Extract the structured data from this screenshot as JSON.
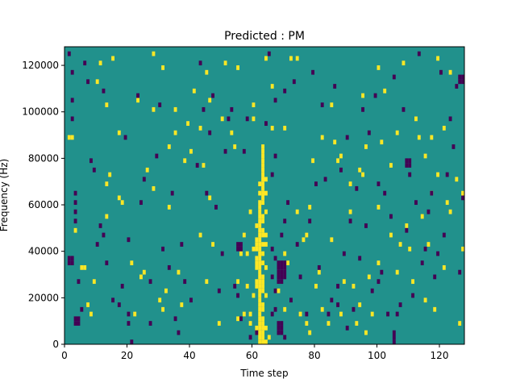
{
  "chart_data": {
    "type": "heatmap",
    "title": "Predicted : PM",
    "xlabel": "Time step",
    "ylabel": "Frequency (Hz)",
    "xlim": [
      0,
      128
    ],
    "ylim": [
      0,
      128000
    ],
    "x_ticks": [
      0,
      20,
      40,
      60,
      80,
      100,
      120
    ],
    "y_ticks": [
      0,
      20000,
      40000,
      60000,
      80000,
      100000,
      120000
    ],
    "grid": false,
    "colormap": "viridis",
    "values": {
      "low": -1,
      "mid": 0,
      "high": 1
    },
    "colors": {
      "low": "#440154",
      "mid": "#21918c",
      "high": "#fde725"
    },
    "background_value": 0,
    "bin_width": [
      1,
      2000
    ],
    "cells_high": [
      [
        62,
        1000
      ],
      [
        63,
        1000
      ],
      [
        63,
        3000
      ],
      [
        62,
        3000
      ],
      [
        61,
        5000
      ],
      [
        62,
        5000
      ],
      [
        63,
        5000
      ],
      [
        61,
        7000
      ],
      [
        62,
        7000
      ],
      [
        63,
        7000
      ],
      [
        62,
        9000
      ],
      [
        63,
        9000
      ],
      [
        63,
        11000
      ],
      [
        62,
        11000
      ],
      [
        62,
        13000
      ],
      [
        62,
        15000
      ],
      [
        63,
        15000
      ],
      [
        63,
        17000
      ],
      [
        62,
        17000
      ],
      [
        62,
        19000
      ],
      [
        62,
        21000
      ],
      [
        62,
        23000
      ],
      [
        63,
        23000
      ],
      [
        62,
        25000
      ],
      [
        63,
        25000
      ],
      [
        61,
        25000
      ],
      [
        62,
        27000
      ],
      [
        63,
        27000
      ],
      [
        61,
        27000
      ],
      [
        62,
        29000
      ],
      [
        63,
        29000
      ],
      [
        62,
        31000
      ],
      [
        62,
        33000
      ],
      [
        61,
        33000
      ],
      [
        62,
        35000
      ],
      [
        63,
        35000
      ],
      [
        62,
        37000
      ],
      [
        61,
        37000
      ],
      [
        62,
        39000
      ],
      [
        63,
        39000
      ],
      [
        61,
        41000
      ],
      [
        62,
        41000
      ],
      [
        60,
        41000
      ],
      [
        61,
        43000
      ],
      [
        62,
        43000
      ],
      [
        63,
        43000
      ],
      [
        62,
        45000
      ],
      [
        61,
        45000
      ],
      [
        62,
        47000
      ],
      [
        63,
        47000
      ],
      [
        62,
        49000
      ],
      [
        63,
        49000
      ],
      [
        62,
        51000
      ],
      [
        61,
        51000
      ],
      [
        62,
        53000
      ],
      [
        63,
        53000
      ],
      [
        62,
        55000
      ],
      [
        63,
        55000
      ],
      [
        62,
        57000
      ],
      [
        62,
        59000
      ],
      [
        62,
        61000
      ],
      [
        63,
        61000
      ],
      [
        63,
        63000
      ],
      [
        63,
        65000
      ],
      [
        62,
        65000
      ],
      [
        63,
        67000
      ],
      [
        63,
        69000
      ],
      [
        62,
        69000
      ],
      [
        63,
        71000
      ],
      [
        63,
        73000
      ],
      [
        63,
        75000
      ],
      [
        63,
        77000
      ],
      [
        63,
        79000
      ],
      [
        63,
        81000
      ],
      [
        63,
        83000
      ],
      [
        63,
        85000
      ],
      [
        59,
        9000
      ],
      [
        59,
        13000
      ],
      [
        58,
        25000
      ],
      [
        64,
        1000
      ],
      [
        65,
        3000
      ],
      [
        64,
        7000
      ],
      [
        58,
        39000
      ],
      [
        60,
        21000
      ],
      [
        64,
        21000
      ],
      [
        61,
        35000
      ],
      [
        64,
        57000
      ],
      [
        64,
        65000
      ],
      [
        64,
        71000
      ],
      [
        64,
        33000
      ],
      [
        64,
        43000
      ],
      [
        64,
        47000
      ],
      [
        1,
        89000
      ],
      [
        2,
        89000
      ],
      [
        5,
        33000
      ],
      [
        6,
        33000
      ],
      [
        8,
        13000
      ],
      [
        9,
        27000
      ],
      [
        10,
        113000
      ],
      [
        11,
        121000
      ],
      [
        13,
        69000
      ],
      [
        13,
        103000
      ],
      [
        14,
        73000
      ],
      [
        15,
        123000
      ],
      [
        17,
        63000
      ],
      [
        17,
        91000
      ],
      [
        18,
        61000
      ],
      [
        21,
        35000
      ],
      [
        22,
        13000
      ],
      [
        23,
        105000
      ],
      [
        24,
        29000
      ],
      [
        26,
        75000
      ],
      [
        28,
        67000
      ],
      [
        28,
        125000
      ],
      [
        28,
        101000
      ],
      [
        30,
        19000
      ],
      [
        31,
        15000
      ],
      [
        31,
        119000
      ],
      [
        32,
        23000
      ],
      [
        33,
        59000
      ],
      [
        35,
        91000
      ],
      [
        35,
        101000
      ],
      [
        36,
        31000
      ],
      [
        37,
        17000
      ],
      [
        38,
        79000
      ],
      [
        39,
        95000
      ],
      [
        40,
        83000
      ],
      [
        41,
        109000
      ],
      [
        43,
        47000
      ],
      [
        43,
        93000
      ],
      [
        44,
        77000
      ],
      [
        45,
        27000
      ],
      [
        45,
        117000
      ],
      [
        46,
        63000
      ],
      [
        47,
        43000
      ],
      [
        49,
        9000
      ],
      [
        50,
        97000
      ],
      [
        51,
        121000
      ],
      [
        53,
        91000
      ],
      [
        54,
        85000
      ],
      [
        55,
        27000
      ],
      [
        55,
        11000
      ],
      [
        56,
        39000
      ],
      [
        57,
        13000
      ],
      [
        57,
        47000
      ],
      [
        59,
        57000
      ],
      [
        60,
        97000
      ],
      [
        60,
        103000
      ],
      [
        64,
        123000
      ],
      [
        66,
        111000
      ],
      [
        68,
        23000
      ],
      [
        70,
        93000
      ],
      [
        70,
        15000
      ],
      [
        71,
        35000
      ],
      [
        72,
        123000
      ],
      [
        74,
        57000
      ],
      [
        75,
        13000
      ],
      [
        76,
        45000
      ],
      [
        77,
        9000
      ],
      [
        77,
        47000
      ],
      [
        78,
        59000
      ],
      [
        79,
        79000
      ],
      [
        80,
        25000
      ],
      [
        81,
        31000
      ],
      [
        82,
        15000
      ],
      [
        82,
        89000
      ],
      [
        84,
        9000
      ],
      [
        85,
        45000
      ],
      [
        85,
        103000
      ],
      [
        86,
        87000
      ],
      [
        87,
        79000
      ],
      [
        88,
        81000
      ],
      [
        88,
        13000
      ],
      [
        89,
        27000
      ],
      [
        91,
        57000
      ],
      [
        92,
        25000
      ],
      [
        93,
        9000
      ],
      [
        94,
        17000
      ],
      [
        95,
        73000
      ],
      [
        95,
        107000
      ],
      [
        96,
        85000
      ],
      [
        97,
        29000
      ],
      [
        98,
        13000
      ],
      [
        100,
        35000
      ],
      [
        100,
        119000
      ],
      [
        100,
        59000
      ],
      [
        101,
        87000
      ],
      [
        102,
        109000
      ],
      [
        104,
        77000
      ],
      [
        106,
        91000
      ],
      [
        106,
        31000
      ],
      [
        107,
        43000
      ],
      [
        108,
        121000
      ],
      [
        109,
        51000
      ],
      [
        110,
        41000
      ],
      [
        111,
        27000
      ],
      [
        112,
        97000
      ],
      [
        113,
        89000
      ],
      [
        115,
        19000
      ],
      [
        116,
        43000
      ],
      [
        117,
        89000
      ],
      [
        118,
        15000
      ],
      [
        119,
        73000
      ],
      [
        121,
        33000
      ],
      [
        121,
        93000
      ],
      [
        122,
        61000
      ],
      [
        123,
        57000
      ],
      [
        125,
        71000
      ],
      [
        126,
        9000
      ],
      [
        127,
        41000
      ],
      [
        119,
        123000
      ],
      [
        123,
        117000
      ],
      [
        117,
        65000
      ],
      [
        115,
        81000
      ],
      [
        114,
        55000
      ],
      [
        104,
        47000
      ],
      [
        96,
        5000
      ],
      [
        91,
        69000
      ],
      [
        74,
        123000
      ],
      [
        70,
        39000
      ],
      [
        66,
        93000
      ],
      [
        55,
        119000
      ],
      [
        46,
        105000
      ],
      [
        33,
        85000
      ],
      [
        25,
        31000
      ],
      [
        13,
        55000
      ],
      [
        7,
        17000
      ],
      [
        3,
        49000
      ],
      [
        127,
        65000
      ],
      [
        94,
        75000
      ],
      [
        78,
        5000
      ]
    ],
    "cells_low": [
      [
        68,
        35000
      ],
      [
        69,
        35000
      ],
      [
        70,
        35000
      ],
      [
        68,
        33000
      ],
      [
        69,
        33000
      ],
      [
        70,
        33000
      ],
      [
        68,
        31000
      ],
      [
        69,
        31000
      ],
      [
        70,
        31000
      ],
      [
        68,
        29000
      ],
      [
        69,
        29000
      ],
      [
        70,
        29000
      ],
      [
        68,
        27000
      ],
      [
        69,
        27000
      ],
      [
        68,
        9000
      ],
      [
        69,
        9000
      ],
      [
        68,
        7000
      ],
      [
        69,
        7000
      ],
      [
        68,
        5000
      ],
      [
        69,
        5000
      ],
      [
        66,
        13000
      ],
      [
        67,
        23000
      ],
      [
        66,
        29000
      ],
      [
        67,
        37000
      ],
      [
        66,
        41000
      ],
      [
        70,
        3000
      ],
      [
        55,
        41000
      ],
      [
        56,
        41000
      ],
      [
        55,
        43000
      ],
      [
        56,
        43000
      ],
      [
        1,
        37000
      ],
      [
        2,
        37000
      ],
      [
        1,
        35000
      ],
      [
        2,
        35000
      ],
      [
        3,
        11000
      ],
      [
        4,
        11000
      ],
      [
        3,
        9000
      ],
      [
        4,
        9000
      ],
      [
        109,
        77000
      ],
      [
        110,
        77000
      ],
      [
        109,
        79000
      ],
      [
        110,
        79000
      ],
      [
        126,
        113000
      ],
      [
        127,
        113000
      ],
      [
        126,
        115000
      ],
      [
        127,
        115000
      ],
      [
        67,
        81000
      ],
      [
        67,
        15000
      ],
      [
        1,
        125000
      ],
      [
        2,
        117000
      ],
      [
        2,
        105000
      ],
      [
        2,
        97000
      ],
      [
        3,
        65000
      ],
      [
        3,
        61000
      ],
      [
        3,
        57000
      ],
      [
        3,
        53000
      ],
      [
        4,
        27000
      ],
      [
        5,
        15000
      ],
      [
        6,
        121000
      ],
      [
        7,
        113000
      ],
      [
        8,
        79000
      ],
      [
        9,
        75000
      ],
      [
        10,
        43000
      ],
      [
        11,
        51000
      ],
      [
        12,
        47000
      ],
      [
        12,
        109000
      ],
      [
        13,
        35000
      ],
      [
        15,
        19000
      ],
      [
        17,
        17000
      ],
      [
        18,
        25000
      ],
      [
        19,
        89000
      ],
      [
        20,
        45000
      ],
      [
        20,
        9000
      ],
      [
        20,
        13000
      ],
      [
        21,
        1000
      ],
      [
        23,
        107000
      ],
      [
        24,
        61000
      ],
      [
        25,
        71000
      ],
      [
        27,
        9000
      ],
      [
        27,
        27000
      ],
      [
        29,
        81000
      ],
      [
        30,
        103000
      ],
      [
        31,
        41000
      ],
      [
        33,
        33000
      ],
      [
        34,
        65000
      ],
      [
        35,
        11000
      ],
      [
        36,
        5000
      ],
      [
        37,
        43000
      ],
      [
        38,
        27000
      ],
      [
        40,
        19000
      ],
      [
        42,
        77000
      ],
      [
        43,
        121000
      ],
      [
        44,
        101000
      ],
      [
        45,
        65000
      ],
      [
        46,
        91000
      ],
      [
        47,
        107000
      ],
      [
        48,
        59000
      ],
      [
        49,
        23000
      ],
      [
        50,
        39000
      ],
      [
        51,
        83000
      ],
      [
        52,
        97000
      ],
      [
        53,
        101000
      ],
      [
        54,
        25000
      ],
      [
        55,
        21000
      ],
      [
        56,
        11000
      ],
      [
        57,
        83000
      ],
      [
        58,
        97000
      ],
      [
        59,
        3000
      ],
      [
        61,
        5000
      ],
      [
        64,
        95000
      ],
      [
        65,
        125000
      ],
      [
        66,
        73000
      ],
      [
        67,
        105000
      ],
      [
        69,
        47000
      ],
      [
        70,
        109000
      ],
      [
        71,
        61000
      ],
      [
        72,
        19000
      ],
      [
        73,
        113000
      ],
      [
        74,
        43000
      ],
      [
        75,
        29000
      ],
      [
        77,
        13000
      ],
      [
        78,
        53000
      ],
      [
        79,
        117000
      ],
      [
        80,
        69000
      ],
      [
        81,
        33000
      ],
      [
        82,
        103000
      ],
      [
        83,
        71000
      ],
      [
        84,
        13000
      ],
      [
        85,
        19000
      ],
      [
        86,
        111000
      ],
      [
        87,
        25000
      ],
      [
        88,
        75000
      ],
      [
        89,
        39000
      ],
      [
        90,
        89000
      ],
      [
        91,
        53000
      ],
      [
        92,
        15000
      ],
      [
        93,
        67000
      ],
      [
        94,
        37000
      ],
      [
        95,
        101000
      ],
      [
        96,
        51000
      ],
      [
        97,
        91000
      ],
      [
        98,
        23000
      ],
      [
        99,
        107000
      ],
      [
        100,
        69000
      ],
      [
        101,
        31000
      ],
      [
        102,
        65000
      ],
      [
        103,
        13000
      ],
      [
        104,
        55000
      ],
      [
        105,
        115000
      ],
      [
        106,
        13000
      ],
      [
        107,
        17000
      ],
      [
        108,
        101000
      ],
      [
        109,
        49000
      ],
      [
        110,
        73000
      ],
      [
        111,
        21000
      ],
      [
        112,
        61000
      ],
      [
        113,
        125000
      ],
      [
        114,
        35000
      ],
      [
        115,
        41000
      ],
      [
        116,
        57000
      ],
      [
        117,
        65000
      ],
      [
        118,
        29000
      ],
      [
        119,
        39000
      ],
      [
        120,
        117000
      ],
      [
        121,
        47000
      ],
      [
        122,
        73000
      ],
      [
        123,
        97000
      ],
      [
        124,
        85000
      ],
      [
        125,
        111000
      ],
      [
        126,
        31000
      ],
      [
        127,
        63000
      ],
      [
        105,
        1000
      ],
      [
        105,
        5000
      ],
      [
        105,
        3000
      ],
      [
        90,
        7000
      ],
      [
        70,
        53000
      ],
      [
        100,
        27000
      ],
      [
        87,
        17000
      ]
    ]
  }
}
